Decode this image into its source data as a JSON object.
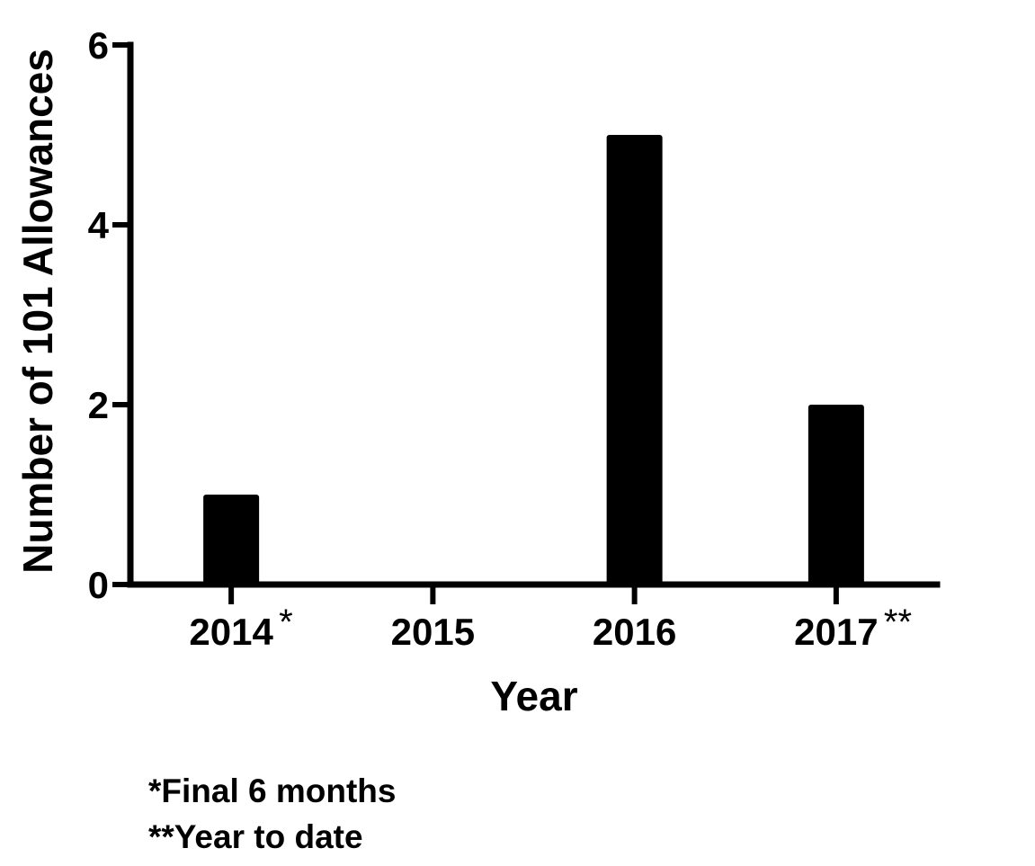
{
  "chart_data": {
    "type": "bar",
    "categories": [
      "2014",
      "2015",
      "2016",
      "2017"
    ],
    "category_markers": [
      "*",
      "",
      "",
      "**"
    ],
    "values": [
      1,
      0,
      5,
      2
    ],
    "xlabel": "Year",
    "ylabel": "Number of 101 Allowances",
    "ylim": [
      0,
      6
    ],
    "yticks": [
      "0",
      "2",
      "4",
      "6"
    ],
    "grid": false,
    "legend": "none",
    "bar_color": "#000000",
    "footnotes": [
      "*Final 6 months",
      "**Year to date"
    ]
  }
}
